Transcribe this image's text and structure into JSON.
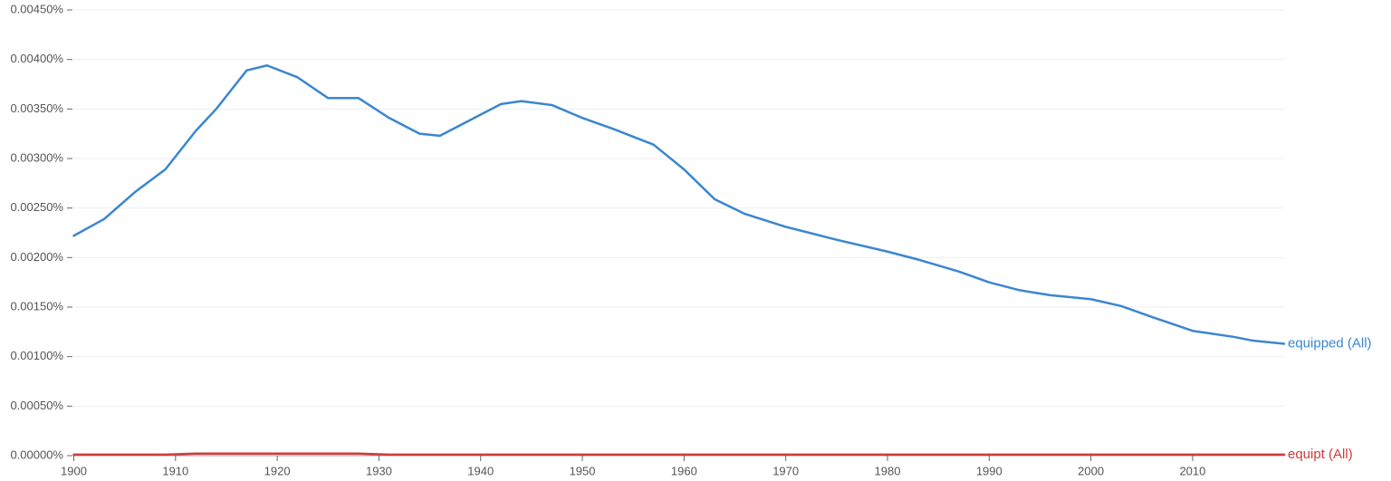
{
  "chart_data": {
    "type": "line",
    "x": [
      1900,
      1903,
      1906,
      1909,
      1912,
      1914,
      1917,
      1919,
      1922,
      1925,
      1928,
      1931,
      1934,
      1936,
      1939,
      1942,
      1944,
      1947,
      1950,
      1953,
      1957,
      1960,
      1963,
      1966,
      1970,
      1975,
      1980,
      1983,
      1987,
      1990,
      1993,
      1996,
      2000,
      2003,
      2006,
      2010,
      2014,
      2016,
      2019
    ],
    "series": [
      {
        "name": "equipped (All)",
        "color": "#3b86d0",
        "values": [
          0.00222,
          0.00239,
          0.00266,
          0.00289,
          0.00328,
          0.0035,
          0.00389,
          0.00394,
          0.00382,
          0.00361,
          0.00361,
          0.00341,
          0.00325,
          0.00323,
          0.00339,
          0.00355,
          0.00358,
          0.00354,
          0.00341,
          0.0033,
          0.00314,
          0.00289,
          0.00259,
          0.00244,
          0.00231,
          0.00218,
          0.00206,
          0.00198,
          0.00186,
          0.00175,
          0.00167,
          0.00162,
          0.00158,
          0.00151,
          0.0014,
          0.00126,
          0.0012,
          0.00116,
          0.00113
        ]
      },
      {
        "name": "equipt (All)",
        "color": "#d03b3b",
        "values": [
          1e-05,
          1e-05,
          1e-05,
          1e-05,
          2e-05,
          2e-05,
          2e-05,
          2e-05,
          2e-05,
          2e-05,
          2e-05,
          1e-05,
          1e-05,
          1e-05,
          1e-05,
          1e-05,
          1e-05,
          1e-05,
          1e-05,
          1e-05,
          1e-05,
          1e-05,
          1e-05,
          1e-05,
          1e-05,
          1e-05,
          1e-05,
          1e-05,
          1e-05,
          1e-05,
          1e-05,
          1e-05,
          1e-05,
          1e-05,
          1e-05,
          1e-05,
          1e-05,
          1e-05,
          1e-05
        ]
      }
    ],
    "xlim": [
      1900,
      2019
    ],
    "xticks": [
      1900,
      1910,
      1920,
      1930,
      1940,
      1950,
      1960,
      1970,
      1980,
      1990,
      2000,
      2010
    ],
    "ylim": [
      0,
      0.0045
    ],
    "yticks": [
      {
        "value": 0,
        "label": "0.00000%"
      },
      {
        "value": 0.0005,
        "label": "0.00050%"
      },
      {
        "value": 0.001,
        "label": "0.00100%"
      },
      {
        "value": 0.0015,
        "label": "0.00150%"
      },
      {
        "value": 0.002,
        "label": "0.00200%"
      },
      {
        "value": 0.0025,
        "label": "0.00250%"
      },
      {
        "value": 0.003,
        "label": "0.00300%"
      },
      {
        "value": 0.0035,
        "label": "0.00350%"
      },
      {
        "value": 0.004,
        "label": "0.00400%"
      },
      {
        "value": 0.0045,
        "label": "0.00450%"
      }
    ],
    "grid": true
  }
}
